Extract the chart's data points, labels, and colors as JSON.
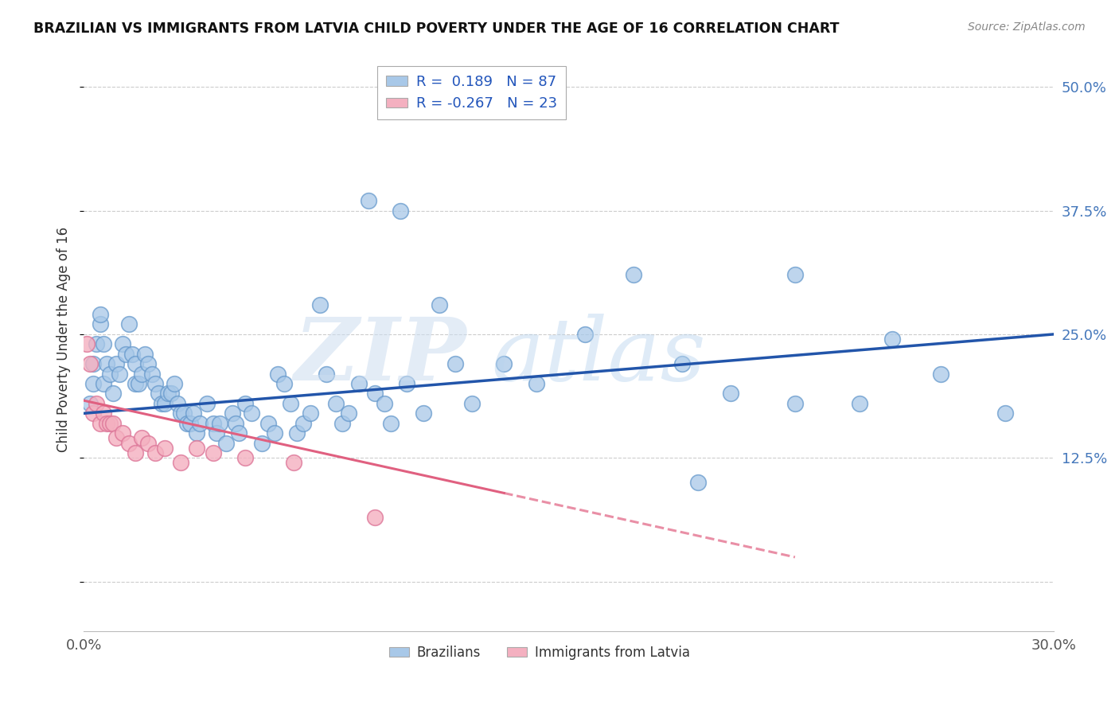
{
  "title": "BRAZILIAN VS IMMIGRANTS FROM LATVIA CHILD POVERTY UNDER THE AGE OF 16 CORRELATION CHART",
  "source": "Source: ZipAtlas.com",
  "ylabel": "Child Poverty Under the Age of 16",
  "xlim": [
    0.0,
    0.3
  ],
  "ylim": [
    -0.05,
    0.54
  ],
  "yticks": [
    0.0,
    0.125,
    0.25,
    0.375,
    0.5
  ],
  "ytick_labels": [
    "",
    "12.5%",
    "25.0%",
    "37.5%",
    "50.0%"
  ],
  "xticks": [
    0.0,
    0.3
  ],
  "xtick_labels": [
    "0.0%",
    "30.0%"
  ],
  "r_brazilian": 0.189,
  "n_brazilian": 87,
  "r_latvia": -0.267,
  "n_latvia": 23,
  "blue_color": "#a8c8e8",
  "pink_color": "#f4b0c0",
  "trend_blue": "#2255aa",
  "trend_pink": "#e06080",
  "legend_label_1": "Brazilians",
  "legend_label_2": "Immigrants from Latvia",
  "brazil_x": [
    0.002,
    0.003,
    0.003,
    0.004,
    0.005,
    0.005,
    0.006,
    0.006,
    0.007,
    0.008,
    0.009,
    0.01,
    0.011,
    0.012,
    0.013,
    0.014,
    0.015,
    0.016,
    0.016,
    0.017,
    0.018,
    0.019,
    0.02,
    0.021,
    0.022,
    0.023,
    0.024,
    0.025,
    0.026,
    0.027,
    0.028,
    0.029,
    0.03,
    0.031,
    0.032,
    0.033,
    0.034,
    0.035,
    0.036,
    0.038,
    0.04,
    0.041,
    0.042,
    0.044,
    0.046,
    0.047,
    0.048,
    0.05,
    0.052,
    0.055,
    0.057,
    0.059,
    0.06,
    0.062,
    0.064,
    0.066,
    0.068,
    0.07,
    0.073,
    0.075,
    0.078,
    0.08,
    0.082,
    0.085,
    0.088,
    0.09,
    0.093,
    0.095,
    0.098,
    0.1,
    0.105,
    0.11,
    0.115,
    0.12,
    0.13,
    0.14,
    0.155,
    0.17,
    0.185,
    0.2,
    0.22,
    0.24,
    0.25,
    0.265,
    0.285,
    0.22,
    0.19
  ],
  "brazil_y": [
    0.18,
    0.2,
    0.22,
    0.24,
    0.26,
    0.27,
    0.24,
    0.2,
    0.22,
    0.21,
    0.19,
    0.22,
    0.21,
    0.24,
    0.23,
    0.26,
    0.23,
    0.22,
    0.2,
    0.2,
    0.21,
    0.23,
    0.22,
    0.21,
    0.2,
    0.19,
    0.18,
    0.18,
    0.19,
    0.19,
    0.2,
    0.18,
    0.17,
    0.17,
    0.16,
    0.16,
    0.17,
    0.15,
    0.16,
    0.18,
    0.16,
    0.15,
    0.16,
    0.14,
    0.17,
    0.16,
    0.15,
    0.18,
    0.17,
    0.14,
    0.16,
    0.15,
    0.21,
    0.2,
    0.18,
    0.15,
    0.16,
    0.17,
    0.28,
    0.21,
    0.18,
    0.16,
    0.17,
    0.2,
    0.385,
    0.19,
    0.18,
    0.16,
    0.375,
    0.2,
    0.17,
    0.28,
    0.22,
    0.18,
    0.22,
    0.2,
    0.25,
    0.31,
    0.22,
    0.19,
    0.18,
    0.18,
    0.245,
    0.21,
    0.17,
    0.31,
    0.1
  ],
  "latvia_x": [
    0.001,
    0.002,
    0.003,
    0.004,
    0.005,
    0.006,
    0.007,
    0.008,
    0.009,
    0.01,
    0.012,
    0.014,
    0.016,
    0.018,
    0.02,
    0.022,
    0.025,
    0.03,
    0.035,
    0.04,
    0.05,
    0.065,
    0.09
  ],
  "latvia_y": [
    0.24,
    0.22,
    0.17,
    0.18,
    0.16,
    0.17,
    0.16,
    0.16,
    0.16,
    0.145,
    0.15,
    0.14,
    0.13,
    0.145,
    0.14,
    0.13,
    0.135,
    0.12,
    0.135,
    0.13,
    0.125,
    0.12,
    0.065
  ],
  "trend_blue_x0": 0.0,
  "trend_blue_y0": 0.17,
  "trend_blue_x1": 0.3,
  "trend_blue_y1": 0.25,
  "trend_pink_x0": 0.0,
  "trend_pink_y0": 0.183,
  "trend_pink_xsolid": 0.13,
  "trend_pink_xdash": 0.22,
  "trend_pink_y_at_0": 0.183,
  "trend_pink_slope": -0.72
}
